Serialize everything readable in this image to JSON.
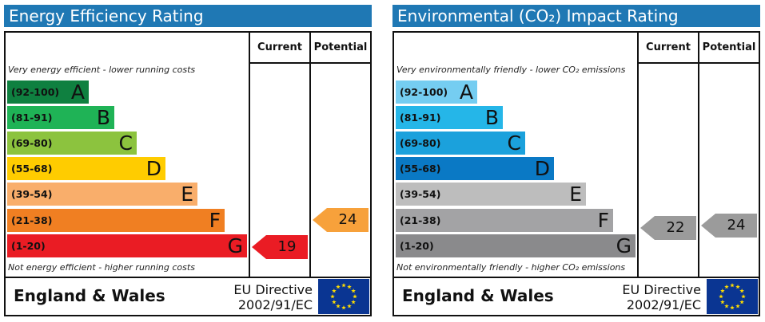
{
  "chart_data": [
    {
      "type": "bar",
      "title": "Energy Efficiency Rating",
      "columns": [
        "Current",
        "Potential"
      ],
      "top_note": "Very energy efficient - lower running costs",
      "bottom_note": "Not energy efficient - higher running costs",
      "bands": [
        {
          "range": "(92-100)",
          "letter": "A",
          "color": "#0f8040",
          "text_color": "#111111"
        },
        {
          "range": "(81-91)",
          "letter": "B",
          "color": "#1fb356",
          "text_color": "#111111"
        },
        {
          "range": "(69-80)",
          "letter": "C",
          "color": "#8cc33e",
          "text_color": "#111111"
        },
        {
          "range": "(55-68)",
          "letter": "D",
          "color": "#ffcc00",
          "text_color": "#111111"
        },
        {
          "range": "(39-54)",
          "letter": "E",
          "color": "#f9ae6b",
          "text_color": "#111111"
        },
        {
          "range": "(21-38)",
          "letter": "F",
          "color": "#f07f22",
          "text_color": "#111111"
        },
        {
          "range": "(1-20)",
          "letter": "G",
          "color": "#ea1c24",
          "text_color": "#111111"
        }
      ],
      "current": {
        "value": "19",
        "band": "G",
        "color": "#ea1c24",
        "text_color": "#111111"
      },
      "potential": {
        "value": "24",
        "band": "F",
        "color": "#f7a13b",
        "text_color": "#111111"
      },
      "footer": {
        "region": "England & Wales",
        "directive_line1": "EU Directive",
        "directive_line2": "2002/91/EC"
      }
    },
    {
      "type": "bar",
      "title": "Environmental (CO₂) Impact Rating",
      "columns": [
        "Current",
        "Potential"
      ],
      "top_note": "Very environmentally friendly - lower CO₂ emissions",
      "bottom_note": "Not environmentally friendly - higher CO₂ emissions",
      "bands": [
        {
          "range": "(92-100)",
          "letter": "A",
          "color": "#75cdf1",
          "text_color": "#111111"
        },
        {
          "range": "(81-91)",
          "letter": "B",
          "color": "#25b6e8",
          "text_color": "#111111"
        },
        {
          "range": "(69-80)",
          "letter": "C",
          "color": "#1ba1dc",
          "text_color": "#111111"
        },
        {
          "range": "(55-68)",
          "letter": "D",
          "color": "#0a79c5",
          "text_color": "#111111"
        },
        {
          "range": "(39-54)",
          "letter": "E",
          "color": "#bdbdbd",
          "text_color": "#111111"
        },
        {
          "range": "(21-38)",
          "letter": "F",
          "color": "#a3a3a5",
          "text_color": "#111111"
        },
        {
          "range": "(1-20)",
          "letter": "G",
          "color": "#8a8a8c",
          "text_color": "#111111"
        }
      ],
      "current": {
        "value": "22",
        "band": "F",
        "color": "#9b9b9b",
        "text_color": "#111111"
      },
      "potential": {
        "value": "24",
        "band": "F",
        "color": "#9b9b9b",
        "text_color": "#111111"
      },
      "footer": {
        "region": "England & Wales",
        "directive_line1": "EU Directive",
        "directive_line2": "2002/91/EC"
      }
    }
  ]
}
